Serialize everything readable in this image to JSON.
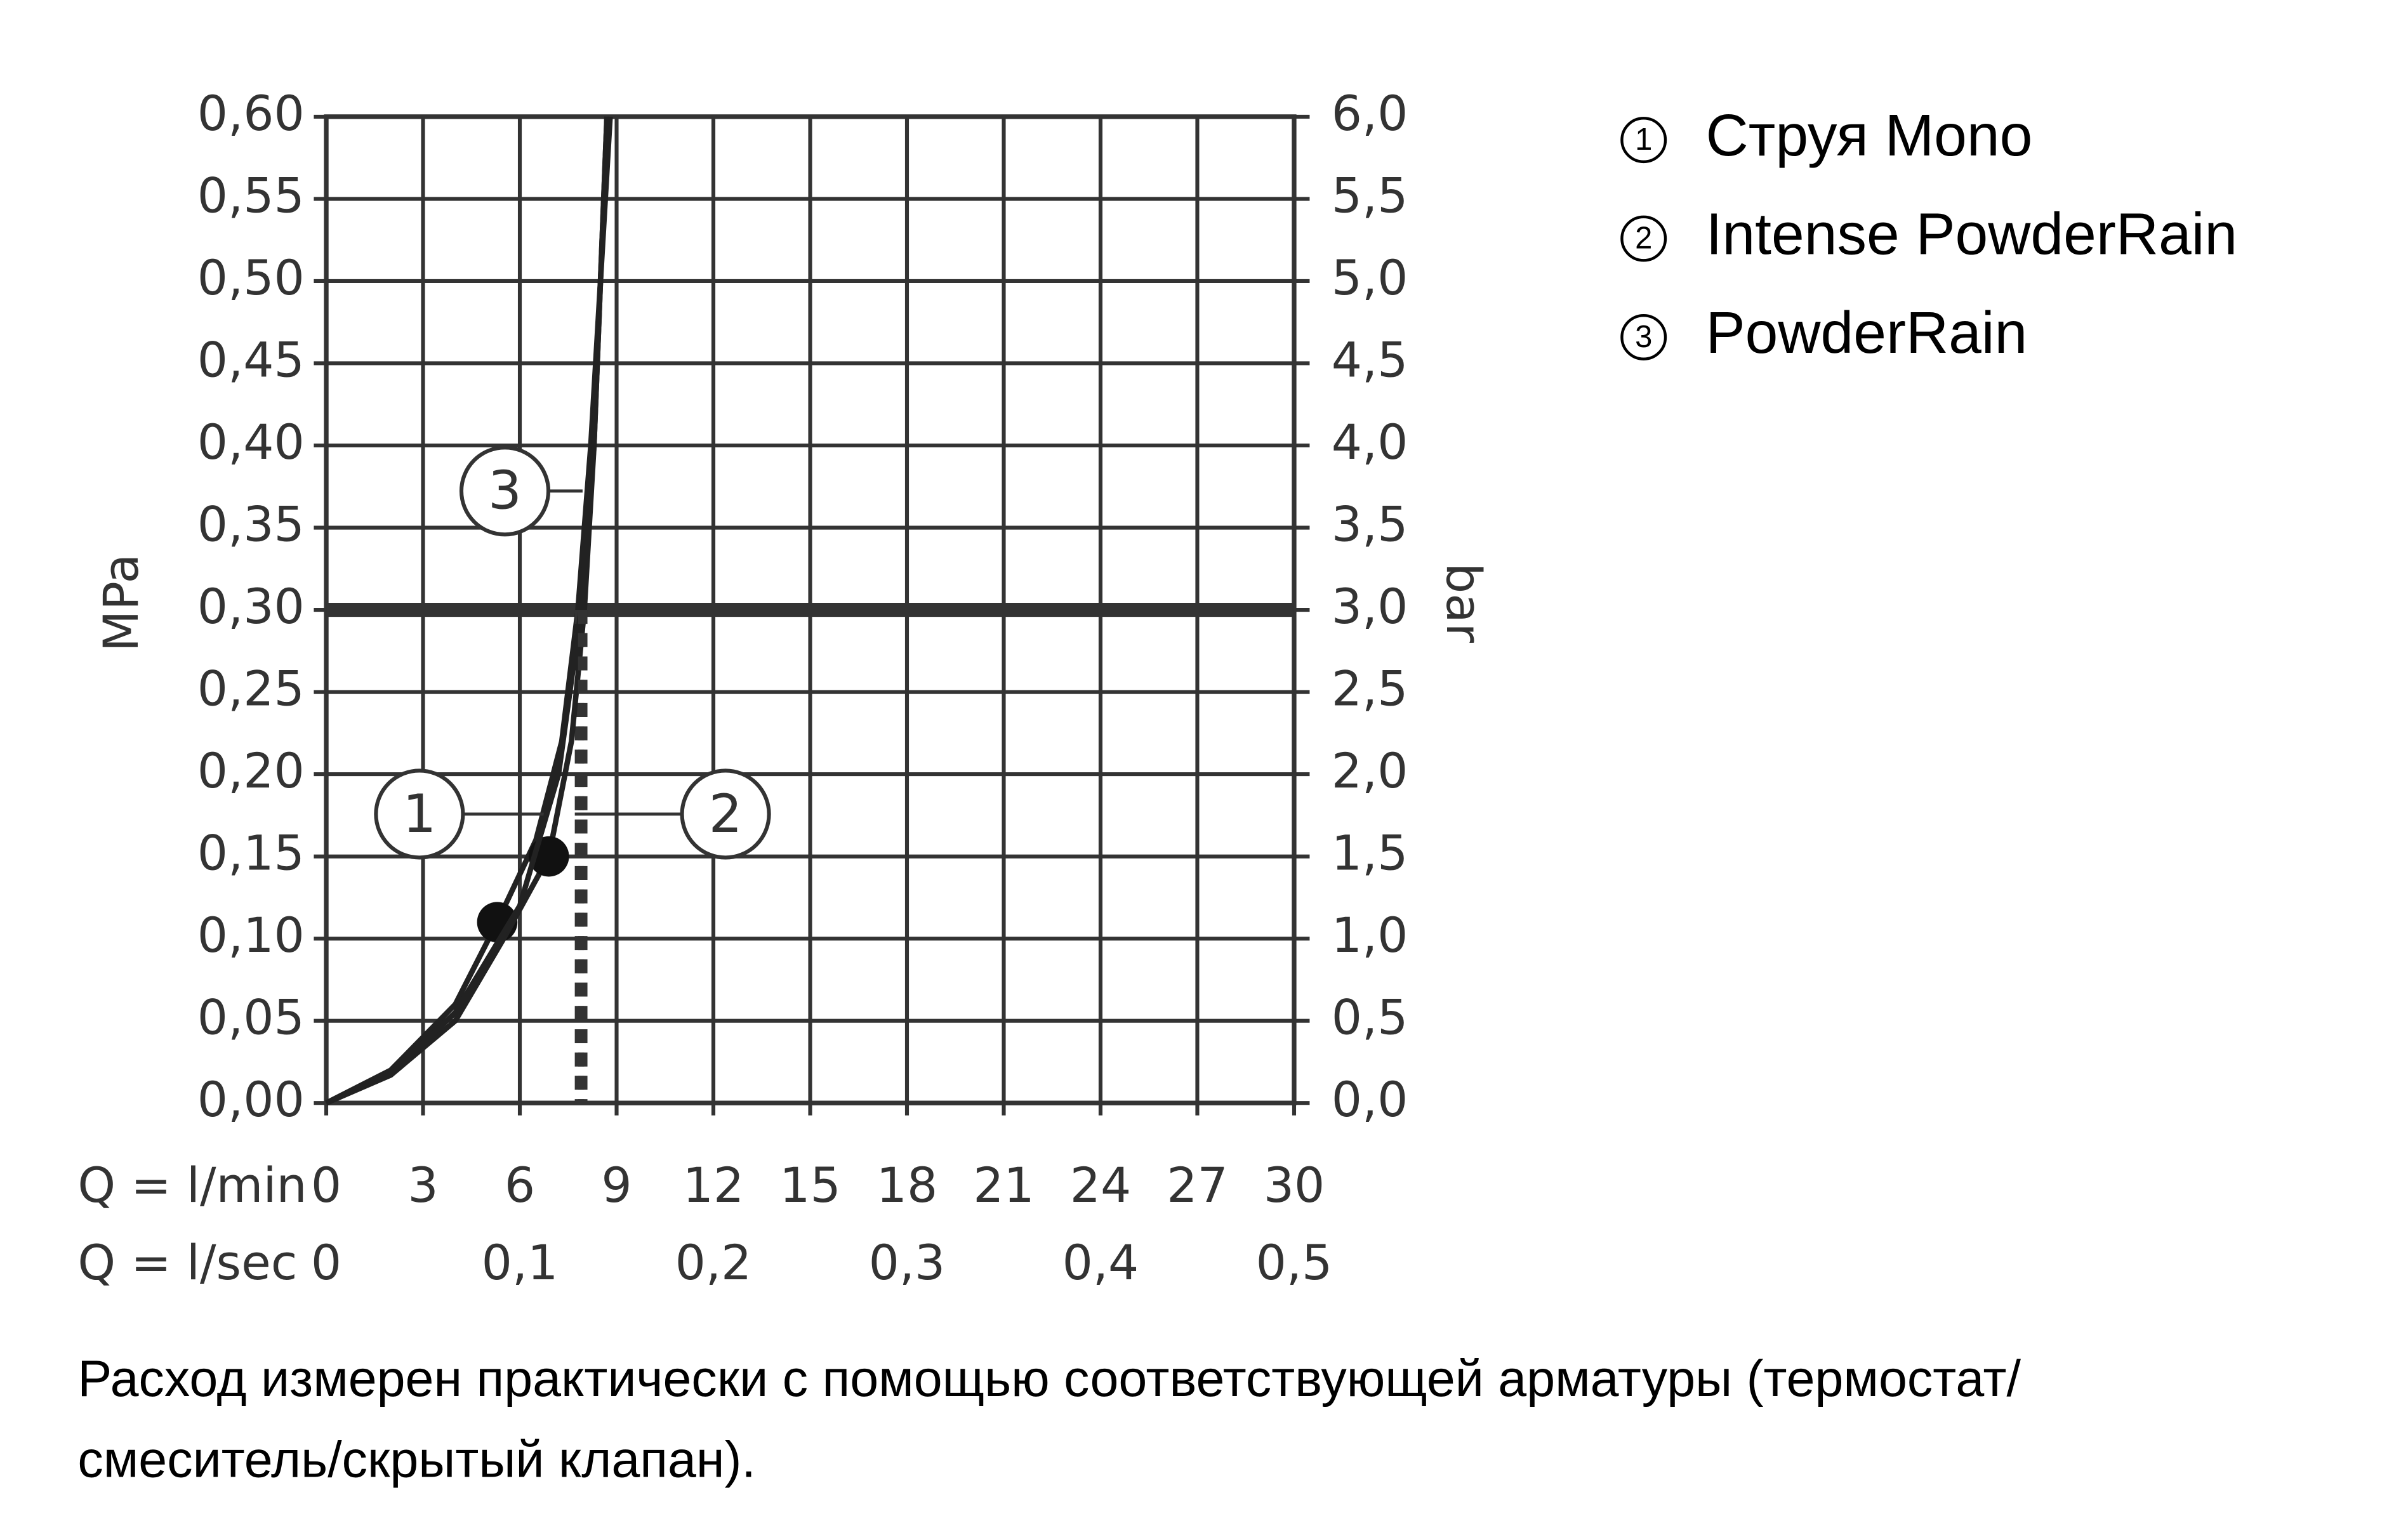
{
  "chart_data": {
    "type": "line",
    "xlabel": "Q = l/min",
    "x2label": "Q = l/sec",
    "ylabel": "MPa",
    "y2label": "bar",
    "xlim": [
      0,
      30
    ],
    "xticks": [
      0,
      3,
      6,
      9,
      12,
      15,
      18,
      21,
      24,
      27,
      30
    ],
    "x2lim": [
      0,
      0.5
    ],
    "x2ticks": [
      0,
      {
        "value": 0.1,
        "label": "0,1"
      },
      {
        "value": 0.2,
        "label": "0,2"
      },
      {
        "value": 0.3,
        "label": "0,3"
      },
      {
        "value": 0.4,
        "label": "0,4"
      },
      {
        "value": 0.5,
        "label": "0,5"
      }
    ],
    "ylim": [
      0,
      0.6
    ],
    "yticks": [
      {
        "value": 0,
        "label": "0,00"
      },
      {
        "value": 0.05,
        "label": "0,05"
      },
      {
        "value": 0.1,
        "label": "0,10"
      },
      {
        "value": 0.15,
        "label": "0,15"
      },
      {
        "value": 0.2,
        "label": "0,20"
      },
      {
        "value": 0.25,
        "label": "0,25"
      },
      {
        "value": 0.3,
        "label": "0,30"
      },
      {
        "value": 0.35,
        "label": "0,35"
      },
      {
        "value": 0.4,
        "label": "0,40"
      },
      {
        "value": 0.45,
        "label": "0,45"
      },
      {
        "value": 0.5,
        "label": "0,50"
      },
      {
        "value": 0.55,
        "label": "0,55"
      },
      {
        "value": 0.6,
        "label": "0,60"
      }
    ],
    "y2lim": [
      0,
      6
    ],
    "y2ticks": [
      {
        "value": 0,
        "label": "0,0"
      },
      {
        "value": 0.5,
        "label": "0,5"
      },
      {
        "value": 1,
        "label": "1,0"
      },
      {
        "value": 1.5,
        "label": "1,5"
      },
      {
        "value": 2,
        "label": "2,0"
      },
      {
        "value": 2.5,
        "label": "2,5"
      },
      {
        "value": 3,
        "label": "3,0"
      },
      {
        "value": 3.5,
        "label": "3,5"
      },
      {
        "value": 4,
        "label": "4,0"
      },
      {
        "value": 4.5,
        "label": "4,5"
      },
      {
        "value": 5,
        "label": "5,0"
      },
      {
        "value": 5.5,
        "label": "5,5"
      },
      {
        "value": 6,
        "label": "6,0"
      }
    ],
    "grid": true,
    "hline": 0.3,
    "color": "#222222",
    "series": [
      {
        "label": "1",
        "name": "Струя Mono",
        "x": [
          0,
          2,
          4,
          5.3,
          6.5,
          7.3,
          7.8,
          8.2,
          8.5,
          8.7
        ],
        "values": [
          0,
          0.02,
          0.06,
          0.11,
          0.16,
          0.22,
          0.3,
          0.4,
          0.5,
          0.6
        ],
        "highlight": [
          5.3,
          0.11
        ]
      },
      {
        "label": "2",
        "name": "Intense PowderRain",
        "x": [
          0,
          2,
          4,
          5.5,
          6.9,
          7.6,
          8.0,
          8.3,
          8.5,
          8.7
        ],
        "values": [
          0,
          0.017,
          0.05,
          0.1,
          0.15,
          0.22,
          0.3,
          0.4,
          0.5,
          0.6
        ],
        "highlight": [
          6.9,
          0.15
        ]
      },
      {
        "label": "3",
        "name": "PowderRain",
        "x": [
          0,
          2,
          4,
          6,
          7.2,
          7.9,
          8.3,
          8.5,
          8.8
        ],
        "values": [
          0,
          0.018,
          0.055,
          0.12,
          0.2,
          0.3,
          0.4,
          0.5,
          0.6
        ]
      }
    ],
    "note": [
      "Расход измерен практически с помощью соответствующей арматуры (термостат/",
      "смеситель/скрытый клапан)."
    ]
  }
}
